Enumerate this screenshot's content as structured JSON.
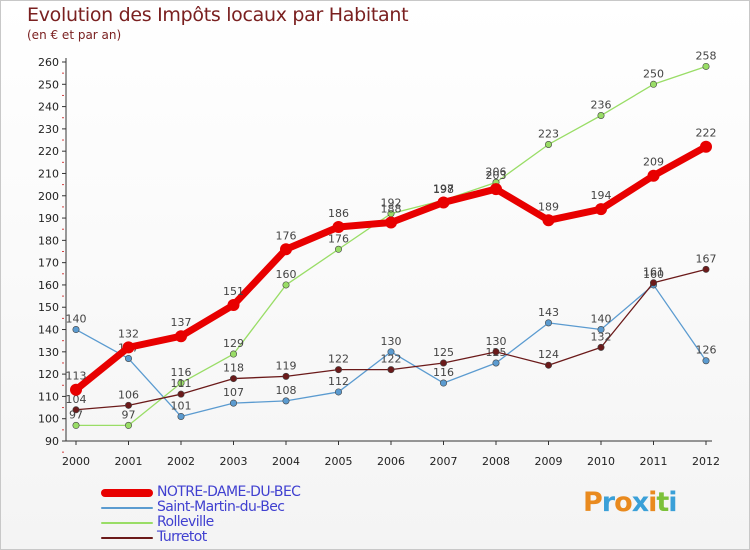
{
  "header": {
    "title": "Evolution des Impôts locaux par Habitant",
    "subtitle": "(en € et par an)"
  },
  "legend": {
    "items": [
      {
        "label": "NOTRE-DAME-DU-BEC",
        "color": "#e80000"
      },
      {
        "label": "Saint-Martin-du-Bec",
        "color": "#5b9bd0"
      },
      {
        "label": "Rolleville",
        "color": "#99dd66"
      },
      {
        "label": "Turretot",
        "color": "#6b1a1a"
      }
    ]
  },
  "logo": {
    "text": "Proxiti"
  },
  "chart_data": {
    "type": "line",
    "title": "Evolution des Impôts locaux par Habitant",
    "subtitle": "(en € et par an)",
    "x": [
      "2000",
      "2001",
      "2002",
      "2003",
      "2004",
      "2005",
      "2006",
      "2007",
      "2008",
      "2009",
      "2010",
      "2011",
      "2012"
    ],
    "ylim": [
      90,
      260
    ],
    "yticks": [
      90,
      100,
      110,
      120,
      130,
      140,
      150,
      160,
      170,
      180,
      190,
      200,
      210,
      220,
      230,
      240,
      250,
      260
    ],
    "grid": false,
    "legend_position": "bottom-left",
    "series": [
      {
        "name": "Saint-Martin-du-Bec",
        "color": "#5b9bd0",
        "values": [
          140,
          127,
          101,
          107,
          108,
          112,
          130,
          116,
          125,
          143,
          140,
          160,
          126
        ]
      },
      {
        "name": "Rolleville",
        "color": "#99dd66",
        "values": [
          97,
          97,
          116,
          129,
          160,
          176,
          192,
          198,
          206,
          223,
          236,
          250,
          258
        ]
      },
      {
        "name": "Turretot",
        "color": "#6b1a1a",
        "values": [
          104,
          106,
          111,
          118,
          119,
          122,
          122,
          125,
          130,
          124,
          132,
          161,
          167
        ]
      },
      {
        "name": "NOTRE-DAME-DU-BEC",
        "color": "#e80000",
        "values": [
          113,
          132,
          137,
          151,
          176,
          186,
          188,
          197,
          203,
          189,
          194,
          209,
          222
        ]
      }
    ]
  }
}
